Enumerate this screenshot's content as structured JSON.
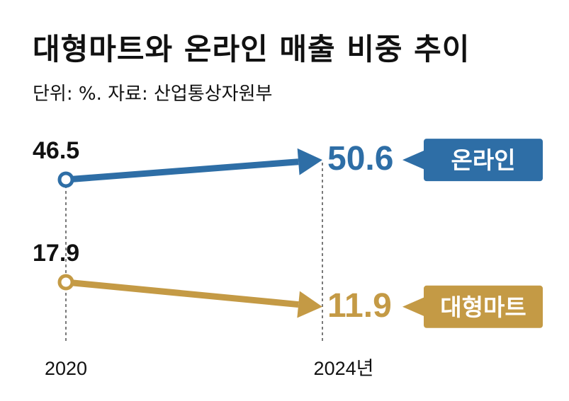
{
  "chart_data": {
    "type": "line",
    "title": "대형마트와 온라인 매출 비중 추이",
    "subtitle": "단위: %. 자료: 산업통상자원부",
    "categories": [
      "2020",
      "2024년"
    ],
    "ylim": [
      0,
      60
    ],
    "grid": false,
    "series": [
      {
        "name": "온라인",
        "values": [
          46.5,
          50.6
        ],
        "labels": [
          "46.5",
          "50.6"
        ],
        "color": "#2e6ea6"
      },
      {
        "name": "대형마트",
        "values": [
          17.9,
          11.9
        ],
        "labels": [
          "17.9",
          "11.9"
        ],
        "color": "#c49a45"
      }
    ]
  }
}
